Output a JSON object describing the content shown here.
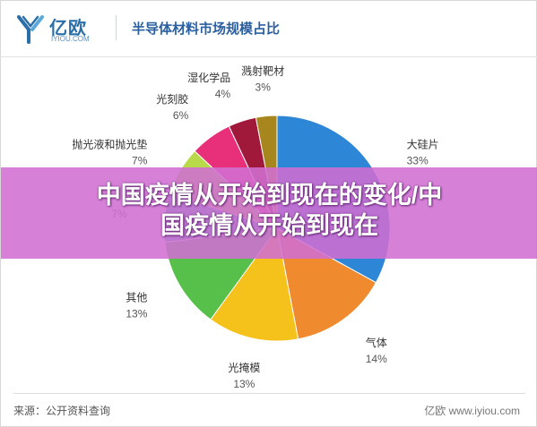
{
  "header": {
    "brand_cn": "亿欧",
    "brand_en": "IYIOU.COM",
    "title": "半导体材料市场规模占比"
  },
  "banner": {
    "line1": "中国疫情从开始到现在的变化/中",
    "line2": "国疫情从开始到现在"
  },
  "footer": {
    "source": "来源：公开资料查询",
    "brand": "亿欧  www.iyiou.com"
  },
  "colors": {
    "header_title": "#2b5fa0",
    "banner": "#d06ed2"
  },
  "chart_data": {
    "type": "pie",
    "title": "半导体材料市场规模占比",
    "slices": [
      {
        "label": "大硅片",
        "value": 33,
        "display": "33%",
        "color": "#2e86d6"
      },
      {
        "label": "气体",
        "value": 14,
        "display": "14%",
        "color": "#f08a2e"
      },
      {
        "label": "光掩模",
        "value": 13,
        "display": "13%",
        "color": "#f4c21a"
      },
      {
        "label": "其他",
        "value": 13,
        "display": "13%",
        "color": "#56c04a"
      },
      {
        "label": "",
        "value": 7,
        "display": "7%",
        "color": "#2ab7b2"
      },
      {
        "label": "抛光液和抛光垫",
        "value": 7,
        "display": "7%",
        "color": "#b8d94a"
      },
      {
        "label": "光刻胶",
        "value": 6,
        "display": "6%",
        "color": "#e8307a"
      },
      {
        "label": "湿化学品",
        "value": 4,
        "display": "4%",
        "color": "#a0183a"
      },
      {
        "label": "溅射靶材",
        "value": 3,
        "display": "3%",
        "color": "#a8861e"
      }
    ]
  }
}
